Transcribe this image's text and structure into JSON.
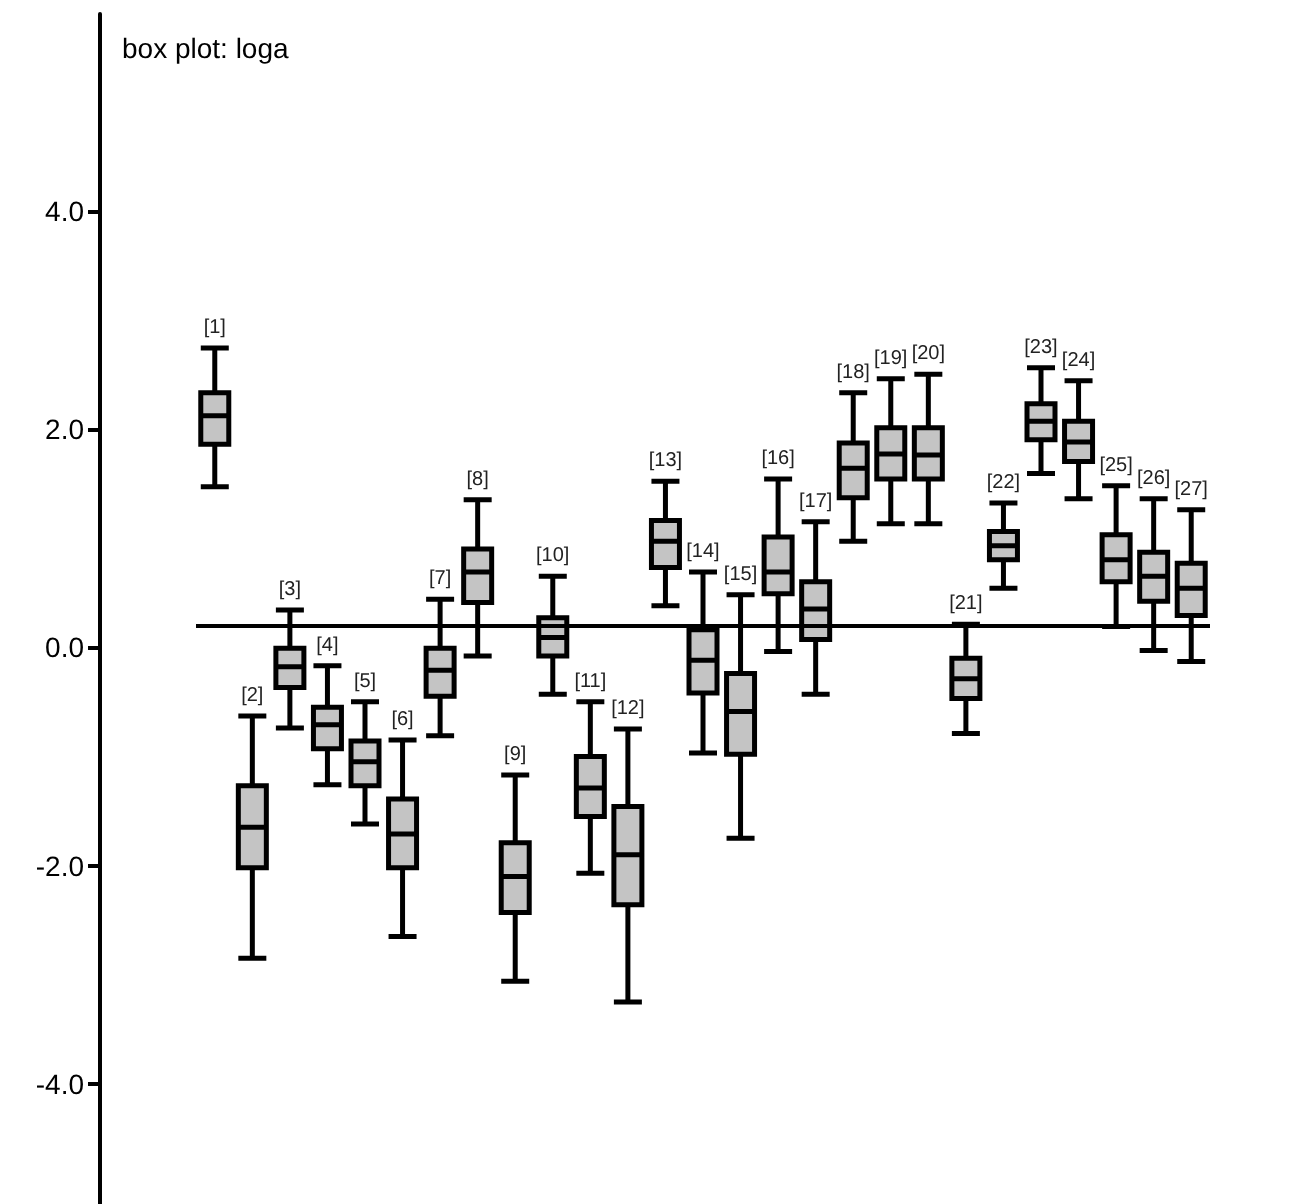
{
  "chart_data": {
    "type": "box",
    "title": "box plot: loga",
    "categories": [
      "[1]",
      "[2]",
      "[3]",
      "[4]",
      "[5]",
      "[6]",
      "[7]",
      "[8]",
      "[9]",
      "[10]",
      "[11]",
      "[12]",
      "[13]",
      "[14]",
      "[15]",
      "[16]",
      "[17]",
      "[18]",
      "[19]",
      "[20]",
      "[21]",
      "[22]",
      "[23]",
      "[24]",
      "[25]",
      "[26]",
      "[27]"
    ],
    "color": "#c4c4c4",
    "boxes": [
      {
        "low": 1.47,
        "q1": 1.86,
        "median": 2.12,
        "q3": 2.33,
        "high": 2.74
      },
      {
        "low": -2.85,
        "q1": -2.02,
        "median": -1.65,
        "q3": -1.27,
        "high": -0.63
      },
      {
        "low": -0.74,
        "q1": -0.37,
        "median": -0.18,
        "q3": -0.01,
        "high": 0.34
      },
      {
        "low": -1.26,
        "q1": -0.93,
        "median": -0.71,
        "q3": -0.55,
        "high": -0.17
      },
      {
        "low": -1.62,
        "q1": -1.27,
        "median": -1.05,
        "q3": -0.86,
        "high": -0.5
      },
      {
        "low": -2.65,
        "q1": -2.02,
        "median": -1.71,
        "q3": -1.39,
        "high": -0.85
      },
      {
        "low": -0.81,
        "q1": -0.45,
        "median": -0.21,
        "q3": -0.01,
        "high": 0.44
      },
      {
        "low": -0.08,
        "q1": 0.41,
        "median": 0.69,
        "q3": 0.9,
        "high": 1.35
      },
      {
        "low": -3.06,
        "q1": -2.43,
        "median": -2.1,
        "q3": -1.79,
        "high": -1.17
      },
      {
        "low": -0.43,
        "q1": -0.08,
        "median": 0.09,
        "q3": 0.27,
        "high": 0.65
      },
      {
        "low": -2.07,
        "q1": -1.55,
        "median": -1.29,
        "q3": -1.0,
        "high": -0.5
      },
      {
        "low": -3.25,
        "q1": -2.36,
        "median": -1.9,
        "q3": -1.46,
        "high": -0.75
      },
      {
        "low": 0.38,
        "q1": 0.73,
        "median": 0.97,
        "q3": 1.16,
        "high": 1.52
      },
      {
        "low": -0.97,
        "q1": -0.42,
        "median": -0.12,
        "q3": 0.16,
        "high": 0.69
      },
      {
        "low": -1.75,
        "q1": -0.98,
        "median": -0.59,
        "q3": -0.24,
        "high": 0.48
      },
      {
        "low": -0.04,
        "q1": 0.49,
        "median": 0.69,
        "q3": 1.01,
        "high": 1.54
      },
      {
        "low": -0.43,
        "q1": 0.07,
        "median": 0.35,
        "q3": 0.6,
        "high": 1.15
      },
      {
        "low": 0.97,
        "q1": 1.37,
        "median": 1.64,
        "q3": 1.87,
        "high": 2.33
      },
      {
        "low": 1.13,
        "q1": 1.54,
        "median": 1.77,
        "q3": 2.01,
        "high": 2.46
      },
      {
        "low": 1.13,
        "q1": 1.54,
        "median": 1.76,
        "q3": 2.01,
        "high": 2.5
      },
      {
        "low": -0.79,
        "q1": -0.47,
        "median": -0.29,
        "q3": -0.1,
        "high": 0.21
      },
      {
        "low": 0.54,
        "q1": 0.8,
        "median": 0.93,
        "q3": 1.06,
        "high": 1.32
      },
      {
        "low": 1.59,
        "q1": 1.9,
        "median": 2.07,
        "q3": 2.23,
        "high": 2.56
      },
      {
        "low": 1.36,
        "q1": 1.7,
        "median": 1.88,
        "q3": 2.07,
        "high": 2.44
      },
      {
        "low": 0.19,
        "q1": 0.6,
        "median": 0.8,
        "q3": 1.03,
        "high": 1.48
      },
      {
        "low": -0.03,
        "q1": 0.42,
        "median": 0.65,
        "q3": 0.87,
        "high": 1.36
      },
      {
        "low": -0.13,
        "q1": 0.29,
        "median": 0.54,
        "q3": 0.77,
        "high": 1.26
      }
    ],
    "ylim": [
      -5.1,
      5.8
    ],
    "yticks": [
      {
        "value": 4,
        "label": "4.0"
      },
      {
        "value": 2,
        "label": "2.0"
      },
      {
        "value": 0,
        "label": "0.0"
      },
      {
        "value": -2,
        "label": "-2.0"
      },
      {
        "value": -4,
        "label": "-4.0"
      }
    ],
    "ref_lines": [
      {
        "axis": "y",
        "value": 0.2,
        "label": null,
        "color": "#000000"
      }
    ],
    "tick_labels": "y",
    "grid": false
  }
}
